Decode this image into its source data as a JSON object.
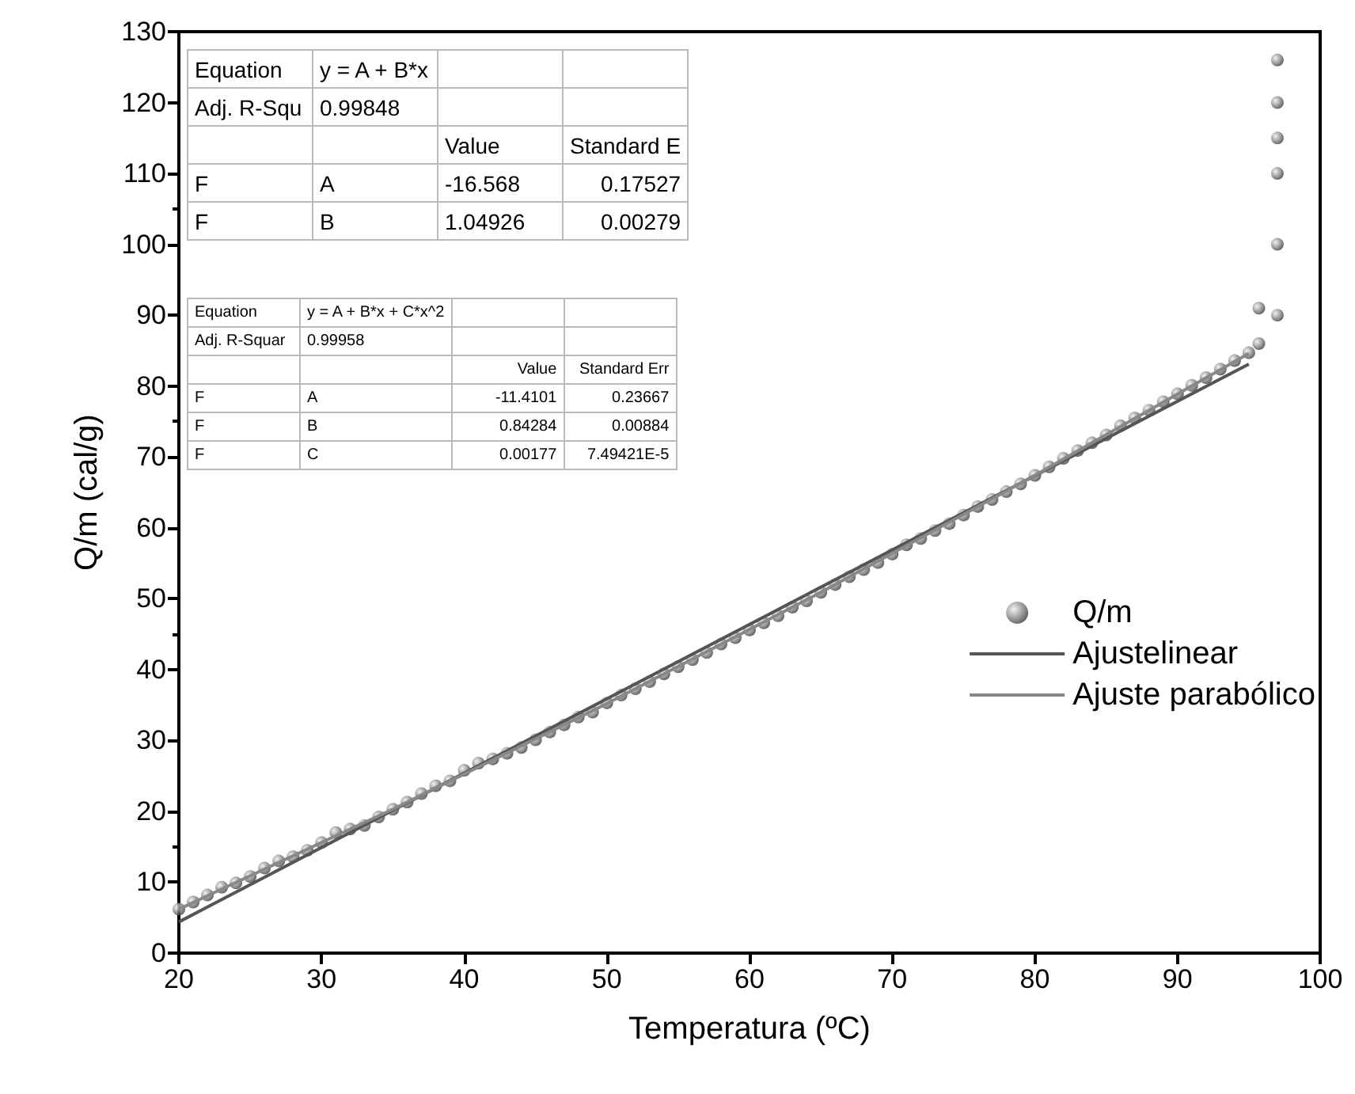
{
  "chart_data": {
    "type": "scatter",
    "xlabel": "Temperatura (ºC)",
    "ylabel": "Q/m (cal/g)",
    "xlim": [
      20,
      100
    ],
    "xticks": [
      20,
      30,
      40,
      50,
      60,
      70,
      80,
      90,
      100
    ],
    "ylim": [
      0,
      130
    ],
    "yticks": [
      0,
      10,
      20,
      30,
      40,
      50,
      60,
      70,
      80,
      90,
      100,
      110,
      120,
      130
    ],
    "grid": false,
    "legend": "right",
    "series": [
      {
        "name": "Q/m",
        "marker": "circle",
        "color": "#3a3a3a",
        "x": [
          20,
          21,
          22,
          23,
          24,
          25,
          26,
          27,
          28,
          29,
          30,
          31,
          32,
          33,
          34,
          35,
          36,
          37,
          38,
          39,
          40,
          41,
          42,
          43,
          44,
          45,
          46,
          47,
          48,
          49,
          50,
          51,
          52,
          53,
          54,
          55,
          56,
          57,
          58,
          59,
          60,
          61,
          62,
          63,
          64,
          65,
          66,
          67,
          68,
          69,
          70,
          71,
          72,
          73,
          74,
          75,
          76,
          77,
          78,
          79,
          80,
          81,
          82,
          83,
          84,
          85,
          86,
          87,
          88,
          89,
          90,
          91,
          92,
          93,
          94,
          95,
          95.7,
          95.7,
          97,
          97,
          97,
          97,
          97,
          97
        ],
        "values": [
          6.2,
          7.2,
          8.2,
          9.3,
          9.9,
          10.8,
          12.0,
          13.0,
          13.6,
          14.5,
          15.6,
          17.0,
          17.5,
          18.0,
          19.2,
          20.3,
          21.3,
          22.5,
          23.6,
          24.3,
          25.8,
          26.8,
          27.4,
          28.2,
          29.0,
          30.1,
          31.2,
          32.2,
          33.3,
          34.0,
          35.3,
          36.4,
          37.3,
          38.3,
          39.4,
          40.4,
          41.4,
          42.4,
          43.6,
          44.5,
          45.6,
          46.6,
          47.6,
          48.8,
          49.7,
          50.9,
          52.0,
          53.1,
          54.1,
          55.1,
          56.3,
          57.6,
          58.5,
          59.6,
          60.6,
          61.8,
          63.0,
          64.0,
          65.1,
          66.2,
          67.4,
          68.6,
          69.8,
          70.9,
          72.0,
          73.1,
          74.4,
          75.5,
          76.6,
          77.8,
          78.9,
          80.1,
          81.2,
          82.4,
          83.6,
          84.7,
          86,
          91,
          90,
          100,
          110,
          115,
          120,
          126
        ]
      },
      {
        "name": "Ajustelinear",
        "type": "line",
        "color": "#555555",
        "x": [
          20,
          95
        ],
        "values": [
          4.4,
          83.1
        ],
        "marker": "none"
      },
      {
        "name": "Ajuste parabólico",
        "type": "line",
        "color": "#888888",
        "x": [
          20,
          35,
          50,
          65,
          80,
          95
        ],
        "values": [
          6.2,
          20.3,
          35.2,
          50.9,
          67.4,
          84.6
        ],
        "marker": "none"
      }
    ],
    "annotations": [
      "Equation\ty = A + B*x\t\t",
      "Adj. R-Squ\t0.99848\t\t",
      "\t\tValue\tStandard E",
      "F\tA\t-16.568\t0.17527",
      "F\tB\t1.04926\t0.00279",
      "Equation\ty = A + B*x + C*x^2\t\t",
      "Adj. R-Squar\t0.99958\t\t",
      "\t\tValue\tStandard Err",
      "F\tA\t-11.4101\t0.23667",
      "F\tB\t0.84284\t0.00884",
      "F\tC\t0.00177\t7.49421E-5"
    ]
  }
}
